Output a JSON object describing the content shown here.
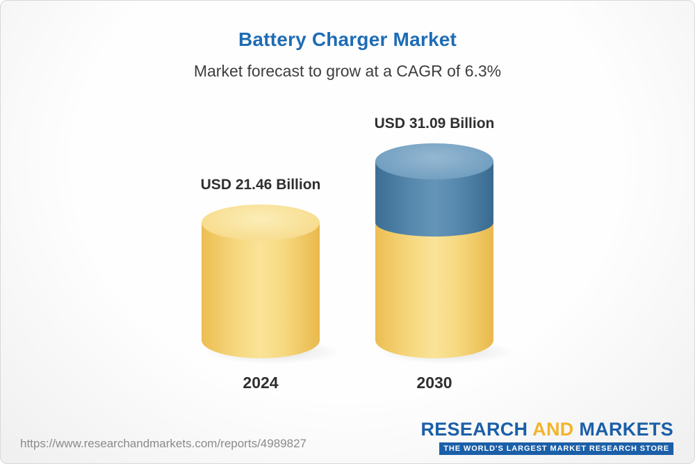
{
  "header": {
    "title": "Battery Charger Market",
    "subtitle": "Market forecast to grow at a CAGR of 6.3%"
  },
  "chart_data": {
    "type": "bar",
    "variant": "3d-cylinder",
    "title": "Battery Charger Market",
    "subtitle": "Market forecast to grow at a CAGR of 6.3%",
    "categories": [
      "2024",
      "2030"
    ],
    "values": [
      21.46,
      31.09
    ],
    "value_labels": [
      "USD 21.46 Billion",
      "USD 31.09 Billion"
    ],
    "unit": "USD Billion",
    "cagr_percent": 6.3,
    "legend": "none",
    "grid": false,
    "colors": {
      "base_segment": "#F5D67E",
      "growth_segment": "#5688AD",
      "title_accent": "#1E6CB5",
      "label_text": "#2F2F2F"
    }
  },
  "footer": {
    "url": "https://www.researchandmarkets.com/reports/4989827",
    "logo": {
      "word1": "RESEARCH",
      "word2": "AND",
      "word3": "MARKETS",
      "tagline": "THE WORLD'S LARGEST MARKET RESEARCH STORE"
    }
  }
}
